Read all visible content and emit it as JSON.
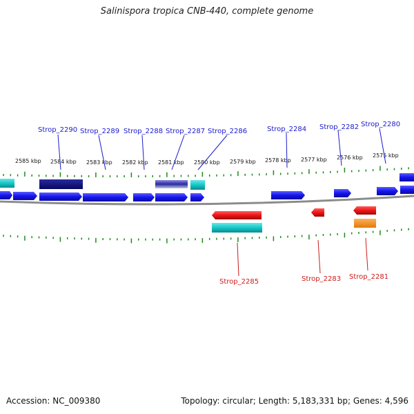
{
  "title": "Salinispora tropica CNB-440, complete genome",
  "accession": "Accession: NC_009380",
  "summary": "Topology: circular; Length: 5,183,331 bp; Genes: 4,596",
  "colors": {
    "backbone": "#8c8c8c",
    "ticks": "#1a8c1a",
    "gene_forward": "#1515ee",
    "gene_forward_dark": "#0d0d80",
    "gene_reverse": "#ee1515",
    "gene_cyan": "#14c8c8",
    "gene_orange": "#f08c14",
    "label_forward": "#1a1acc",
    "label_reverse": "#cc1a1a"
  },
  "scale_labels": [
    "2585 kbp",
    "2584 kbp",
    "2583 kbp",
    "2582 kbp",
    "2581 kbp",
    "2580 kbp",
    "2579 kbp",
    "2578 kbp",
    "2577 kbp",
    "2576 kbp",
    "2575 kbp"
  ],
  "forward_labels": [
    "Strop_2290",
    "Strop_2289",
    "Strop_2288",
    "Strop_2287",
    "Strop_2286",
    "Strop_2284",
    "Strop_2282",
    "Strop_2280"
  ],
  "reverse_labels": [
    "Strop_2285",
    "Strop_2283",
    "Strop_2281"
  ]
}
